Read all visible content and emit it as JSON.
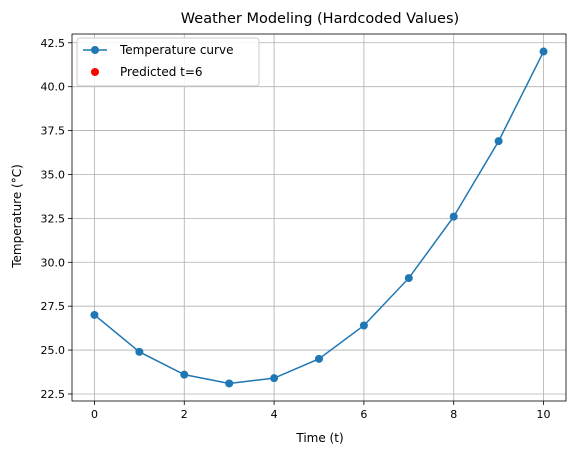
{
  "chart_data": {
    "type": "line",
    "title": "Weather Modeling (Hardcoded Values)",
    "xlabel": "Time (t)",
    "ylabel": "Temperature (°C)",
    "xlim": [
      -0.5,
      10.5
    ],
    "ylim": [
      22.1,
      43.0
    ],
    "xticks": [
      0,
      2,
      4,
      6,
      8,
      10
    ],
    "yticks": [
      22.5,
      25.0,
      27.5,
      30.0,
      32.5,
      35.0,
      37.5,
      40.0,
      42.5
    ],
    "grid": true,
    "legend_position": "top-left",
    "series": [
      {
        "name": "Temperature curve",
        "color": "#1f77b4",
        "marker": "circle",
        "x": [
          0,
          1,
          2,
          3,
          4,
          5,
          6,
          7,
          8,
          9,
          10
        ],
        "y": [
          27.0,
          24.9,
          23.6,
          23.1,
          23.4,
          24.5,
          26.4,
          29.1,
          32.6,
          36.9,
          42.0
        ]
      },
      {
        "name": "Predicted t=6",
        "color": "#ff0000",
        "marker": "scatter",
        "x": [],
        "y": []
      }
    ]
  }
}
